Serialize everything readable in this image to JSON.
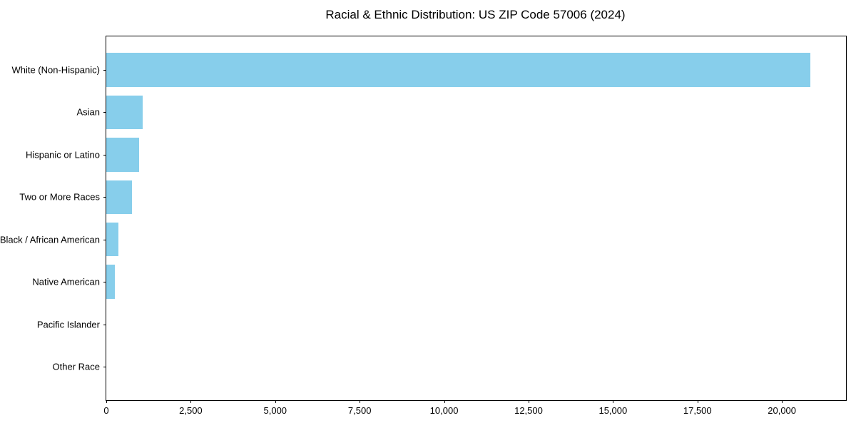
{
  "chart_data": {
    "type": "bar",
    "orientation": "horizontal",
    "title": "Racial & Ethnic Distribution: US ZIP Code 57006 (2024)",
    "categories": [
      "White (Non-Hispanic)",
      "Asian",
      "Hispanic or Latino",
      "Two or More Races",
      "Black / African American",
      "Native American",
      "Pacific Islander",
      "Other Race"
    ],
    "values": [
      20840,
      1080,
      965,
      770,
      350,
      250,
      0,
      0
    ],
    "xlabel": "",
    "ylabel": "",
    "xlim": [
      0,
      21855
    ],
    "xticks": [
      0,
      2500,
      5000,
      7500,
      10000,
      12500,
      15000,
      17500,
      20000
    ],
    "xtick_labels": [
      "0",
      "2,500",
      "5,000",
      "7,500",
      "10,000",
      "12,500",
      "15,000",
      "17,500",
      "20,000"
    ],
    "grid": false,
    "legend": false,
    "bar_color": "#87CEEB",
    "spine_color": "#000000",
    "text_color": "#000000",
    "background_color": "#ffffff"
  }
}
